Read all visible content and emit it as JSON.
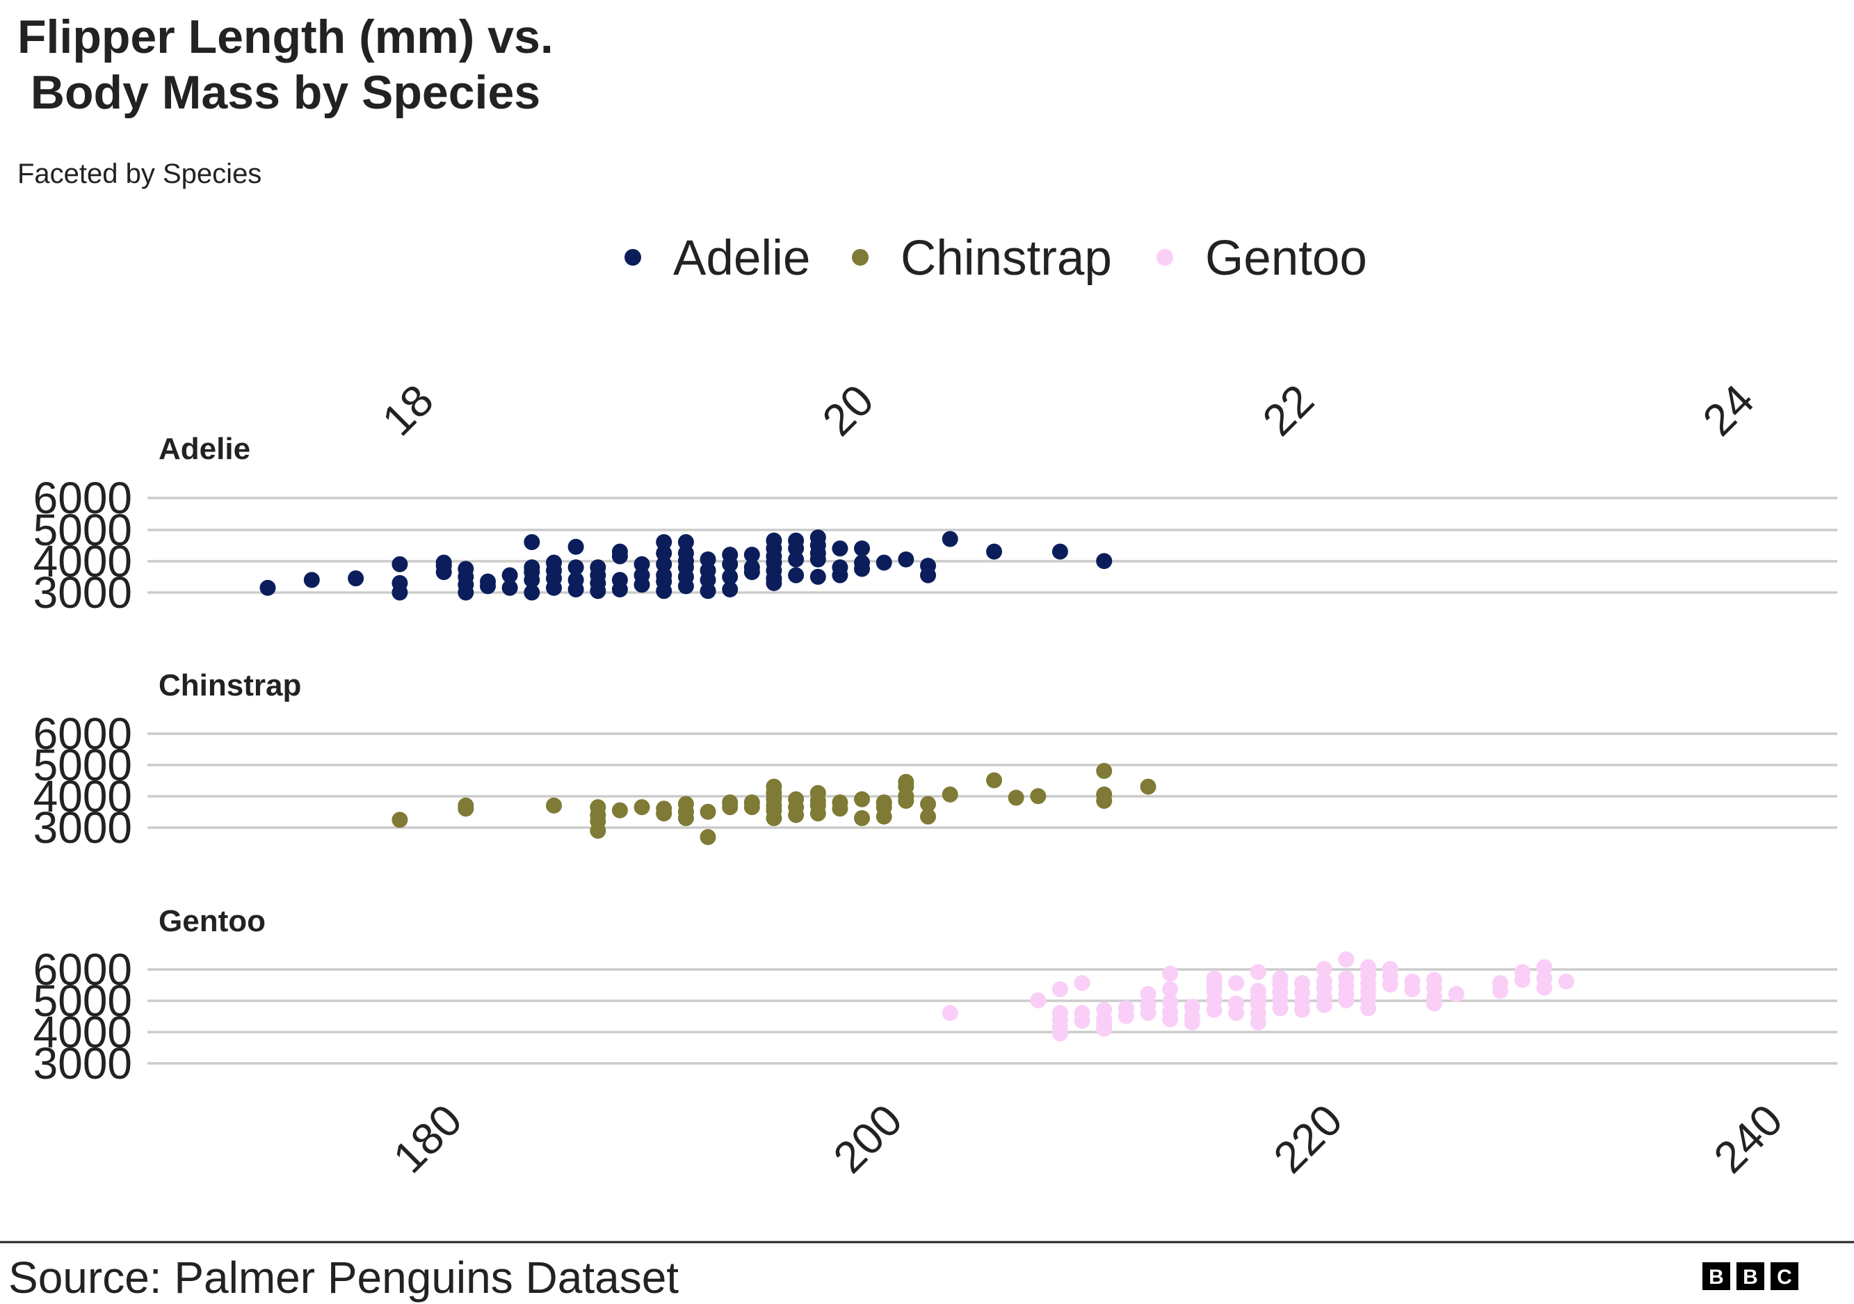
{
  "title_lines": [
    "Flipper Length (mm) vs.",
    " Body Mass by Species"
  ],
  "subtitle": "Faceted by Species",
  "source": "Source: Palmer Penguins Dataset",
  "logo_letters": [
    "B",
    "B",
    "C"
  ],
  "colors": {
    "Adelie": "#0b1e5b",
    "Chinstrap": "#7f7a35",
    "Gentoo": "#f9cff7",
    "grid": "#cbcbcb",
    "text": "#222222"
  },
  "chart_data": {
    "type": "scatter",
    "title": "Flipper Length (mm) vs.\n Body Mass by Species",
    "subtitle": "Faceted by Species",
    "xlabel": "",
    "ylabel": "",
    "xlim": [
      170,
      242
    ],
    "ylim": [
      2700,
      6300
    ],
    "x_ticks_bottom": [
      180,
      200,
      220,
      240
    ],
    "x_ticks_top": [
      18,
      20,
      22,
      24
    ],
    "y_ticks": [
      3000,
      4000,
      5000,
      6000
    ],
    "legend": {
      "position": "top",
      "entries": [
        "Adelie",
        "Chinstrap",
        "Gentoo"
      ]
    },
    "grid": "horizontal",
    "facets": [
      "Adelie",
      "Chinstrap",
      "Gentoo"
    ],
    "series": [
      {
        "name": "Adelie",
        "points": [
          [
            172,
            3150
          ],
          [
            174,
            3400
          ],
          [
            176,
            3450
          ],
          [
            178,
            3000
          ],
          [
            178,
            3300
          ],
          [
            178,
            3900
          ],
          [
            180,
            3650
          ],
          [
            180,
            3850
          ],
          [
            180,
            3950
          ],
          [
            181,
            3000
          ],
          [
            181,
            3250
          ],
          [
            181,
            3500
          ],
          [
            181,
            3750
          ],
          [
            182,
            3200
          ],
          [
            182,
            3350
          ],
          [
            183,
            3150
          ],
          [
            183,
            3550
          ],
          [
            184,
            3000
          ],
          [
            184,
            3400
          ],
          [
            184,
            3650
          ],
          [
            184,
            3800
          ],
          [
            184,
            4600
          ],
          [
            185,
            3150
          ],
          [
            185,
            3450
          ],
          [
            185,
            3700
          ],
          [
            185,
            3950
          ],
          [
            186,
            3100
          ],
          [
            186,
            3400
          ],
          [
            186,
            3800
          ],
          [
            186,
            4450
          ],
          [
            187,
            3050
          ],
          [
            187,
            3300
          ],
          [
            187,
            3550
          ],
          [
            187,
            3800
          ],
          [
            188,
            3100
          ],
          [
            188,
            3400
          ],
          [
            188,
            4150
          ],
          [
            188,
            4300
          ],
          [
            189,
            3250
          ],
          [
            189,
            3550
          ],
          [
            189,
            3900
          ],
          [
            190,
            3050
          ],
          [
            190,
            3350
          ],
          [
            190,
            3550
          ],
          [
            190,
            3900
          ],
          [
            190,
            4250
          ],
          [
            190,
            4600
          ],
          [
            191,
            3200
          ],
          [
            191,
            3500
          ],
          [
            191,
            3800
          ],
          [
            191,
            4000
          ],
          [
            191,
            4250
          ],
          [
            191,
            4600
          ],
          [
            192,
            3050
          ],
          [
            192,
            3400
          ],
          [
            192,
            3700
          ],
          [
            192,
            4050
          ],
          [
            193,
            3100
          ],
          [
            193,
            3500
          ],
          [
            193,
            3900
          ],
          [
            193,
            4200
          ],
          [
            194,
            3650
          ],
          [
            194,
            3800
          ],
          [
            194,
            4200
          ],
          [
            195,
            3300
          ],
          [
            195,
            3450
          ],
          [
            195,
            3700
          ],
          [
            195,
            3950
          ],
          [
            195,
            4150
          ],
          [
            195,
            4400
          ],
          [
            195,
            4650
          ],
          [
            196,
            3550
          ],
          [
            196,
            4050
          ],
          [
            196,
            4400
          ],
          [
            196,
            4650
          ],
          [
            197,
            3500
          ],
          [
            197,
            4050
          ],
          [
            197,
            4250
          ],
          [
            197,
            4500
          ],
          [
            197,
            4750
          ],
          [
            198,
            3550
          ],
          [
            198,
            3800
          ],
          [
            198,
            4400
          ],
          [
            199,
            3750
          ],
          [
            199,
            3950
          ],
          [
            199,
            4400
          ],
          [
            200,
            3950
          ],
          [
            201,
            4050
          ],
          [
            202,
            3550
          ],
          [
            202,
            3850
          ],
          [
            203,
            4700
          ],
          [
            205,
            4300
          ],
          [
            208,
            4300
          ],
          [
            210,
            4000
          ]
        ]
      },
      {
        "name": "Chinstrap",
        "points": [
          [
            178,
            3250
          ],
          [
            181,
            3600
          ],
          [
            181,
            3700
          ],
          [
            185,
            3700
          ],
          [
            187,
            2900
          ],
          [
            187,
            3200
          ],
          [
            187,
            3400
          ],
          [
            187,
            3650
          ],
          [
            188,
            3550
          ],
          [
            189,
            3650
          ],
          [
            190,
            3450
          ],
          [
            190,
            3600
          ],
          [
            191,
            3300
          ],
          [
            191,
            3500
          ],
          [
            191,
            3750
          ],
          [
            192,
            2700
          ],
          [
            192,
            3500
          ],
          [
            193,
            3650
          ],
          [
            193,
            3800
          ],
          [
            194,
            3650
          ],
          [
            194,
            3800
          ],
          [
            195,
            3300
          ],
          [
            195,
            3550
          ],
          [
            195,
            3700
          ],
          [
            195,
            3900
          ],
          [
            195,
            4100
          ],
          [
            195,
            4300
          ],
          [
            196,
            3400
          ],
          [
            196,
            3650
          ],
          [
            196,
            3900
          ],
          [
            197,
            3450
          ],
          [
            197,
            3700
          ],
          [
            197,
            3850
          ],
          [
            197,
            4100
          ],
          [
            198,
            3600
          ],
          [
            198,
            3800
          ],
          [
            199,
            3300
          ],
          [
            199,
            3900
          ],
          [
            200,
            3350
          ],
          [
            200,
            3650
          ],
          [
            200,
            3800
          ],
          [
            201,
            3850
          ],
          [
            201,
            4000
          ],
          [
            201,
            4300
          ],
          [
            201,
            4450
          ],
          [
            202,
            3350
          ],
          [
            202,
            3750
          ],
          [
            203,
            4050
          ],
          [
            205,
            4500
          ],
          [
            206,
            3950
          ],
          [
            207,
            4000
          ],
          [
            210,
            3850
          ],
          [
            210,
            4050
          ],
          [
            210,
            4800
          ],
          [
            212,
            4300
          ]
        ]
      },
      {
        "name": "Gentoo",
        "points": [
          [
            203,
            4600
          ],
          [
            207,
            5000
          ],
          [
            208,
            3950
          ],
          [
            208,
            4150
          ],
          [
            208,
            4350
          ],
          [
            208,
            4600
          ],
          [
            208,
            5350
          ],
          [
            209,
            4350
          ],
          [
            209,
            4600
          ],
          [
            209,
            5550
          ],
          [
            210,
            4100
          ],
          [
            210,
            4250
          ],
          [
            210,
            4400
          ],
          [
            210,
            4700
          ],
          [
            211,
            4500
          ],
          [
            211,
            4750
          ],
          [
            212,
            4600
          ],
          [
            212,
            4850
          ],
          [
            212,
            5200
          ],
          [
            213,
            4400
          ],
          [
            213,
            4650
          ],
          [
            213,
            4950
          ],
          [
            213,
            5350
          ],
          [
            213,
            5850
          ],
          [
            214,
            4300
          ],
          [
            214,
            4500
          ],
          [
            214,
            4800
          ],
          [
            215,
            4700
          ],
          [
            215,
            5000
          ],
          [
            215,
            5300
          ],
          [
            215,
            5500
          ],
          [
            215,
            5700
          ],
          [
            216,
            4600
          ],
          [
            216,
            4900
          ],
          [
            216,
            5550
          ],
          [
            217,
            4300
          ],
          [
            217,
            4600
          ],
          [
            217,
            4900
          ],
          [
            217,
            5100
          ],
          [
            217,
            5300
          ],
          [
            217,
            5900
          ],
          [
            218,
            4750
          ],
          [
            218,
            5000
          ],
          [
            218,
            5250
          ],
          [
            218,
            5500
          ],
          [
            218,
            5700
          ],
          [
            219,
            4700
          ],
          [
            219,
            4950
          ],
          [
            219,
            5250
          ],
          [
            219,
            5550
          ],
          [
            220,
            4850
          ],
          [
            220,
            5100
          ],
          [
            220,
            5400
          ],
          [
            220,
            5600
          ],
          [
            220,
            6000
          ],
          [
            221,
            5000
          ],
          [
            221,
            5200
          ],
          [
            221,
            5450
          ],
          [
            221,
            5700
          ],
          [
            221,
            6300
          ],
          [
            222,
            4750
          ],
          [
            222,
            5050
          ],
          [
            222,
            5300
          ],
          [
            222,
            5550
          ],
          [
            222,
            5800
          ],
          [
            222,
            6050
          ],
          [
            223,
            5500
          ],
          [
            223,
            5750
          ],
          [
            223,
            6000
          ],
          [
            224,
            5350
          ],
          [
            224,
            5600
          ],
          [
            225,
            4900
          ],
          [
            225,
            5100
          ],
          [
            225,
            5400
          ],
          [
            225,
            5650
          ],
          [
            226,
            5200
          ],
          [
            228,
            5300
          ],
          [
            228,
            5550
          ],
          [
            229,
            5650
          ],
          [
            229,
            5900
          ],
          [
            230,
            5400
          ],
          [
            230,
            5700
          ],
          [
            230,
            6050
          ],
          [
            231,
            5600
          ]
        ]
      }
    ]
  }
}
